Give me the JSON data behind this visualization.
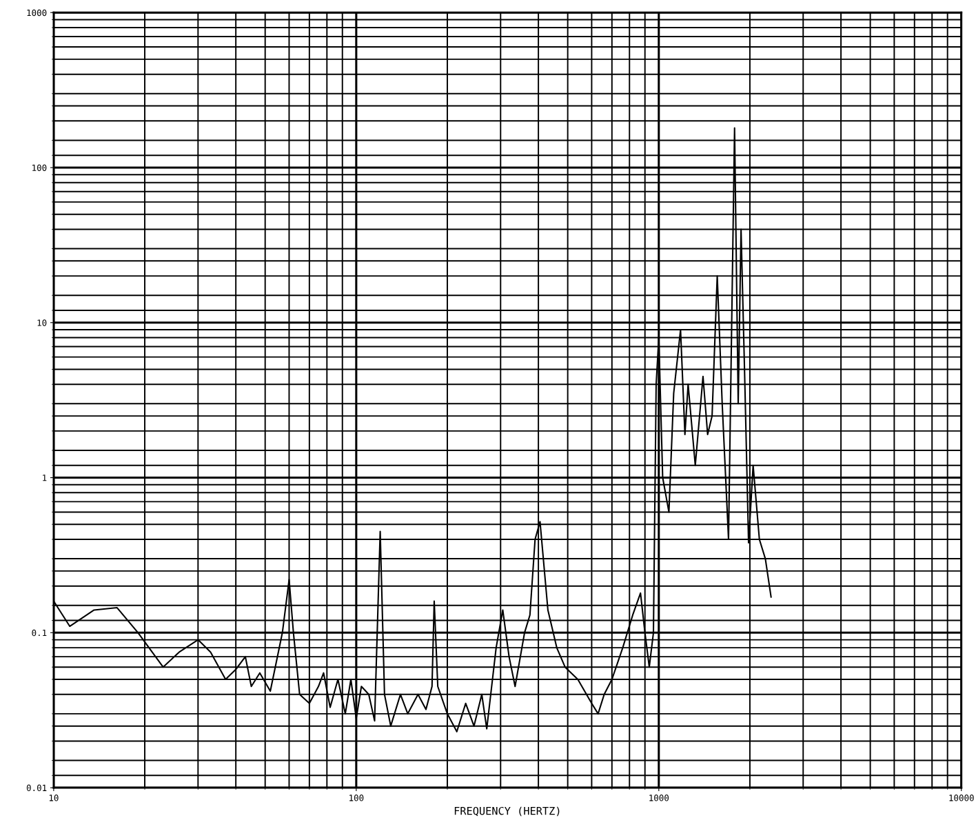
{
  "chart_data": {
    "type": "line",
    "xlabel": "FREQUENCY (HERTZ)",
    "log": "xy",
    "grid": true,
    "marker": "none",
    "line_style": "solid",
    "xlim": [
      10,
      10000
    ],
    "ylim": [
      0.01,
      1000
    ],
    "xticks": [
      10,
      100,
      1000,
      10000
    ],
    "yticks": [
      0.01,
      0.1,
      1,
      10,
      100,
      1000
    ],
    "series": [
      {
        "color": "#000000",
        "x": [
          10,
          11.3,
          13.6,
          16.2,
          19,
          23,
          26,
          30,
          33,
          37,
          40,
          43,
          45,
          48,
          52,
          54,
          57,
          60,
          62,
          65,
          70,
          75,
          78,
          82,
          87,
          92,
          96,
          100,
          104,
          110,
          115,
          120,
          124,
          130,
          140,
          148,
          160,
          170,
          178,
          181,
          186,
          200,
          215,
          230,
          245,
          260,
          270,
          290,
          305,
          320,
          335,
          360,
          375,
          390,
          405,
          430,
          460,
          490,
          540,
          600,
          630,
          660,
          700,
          760,
          820,
          870,
          900,
          930,
          960,
          980,
          1000,
          1030,
          1080,
          1120,
          1180,
          1220,
          1250,
          1320,
          1400,
          1450,
          1500,
          1560,
          1620,
          1700,
          1780,
          1830,
          1870,
          1920,
          1980,
          2050,
          2150,
          2250,
          2350
        ],
        "values": [
          0.16,
          0.11,
          0.14,
          0.145,
          0.1,
          0.06,
          0.075,
          0.09,
          0.075,
          0.05,
          0.058,
          0.07,
          0.045,
          0.055,
          0.042,
          0.06,
          0.1,
          0.22,
          0.1,
          0.04,
          0.035,
          0.045,
          0.055,
          0.033,
          0.05,
          0.03,
          0.05,
          0.028,
          0.045,
          0.04,
          0.027,
          0.45,
          0.04,
          0.025,
          0.04,
          0.03,
          0.04,
          0.032,
          0.045,
          0.16,
          0.045,
          0.03,
          0.023,
          0.035,
          0.025,
          0.04,
          0.024,
          0.08,
          0.14,
          0.07,
          0.045,
          0.1,
          0.13,
          0.4,
          0.52,
          0.14,
          0.08,
          0.06,
          0.05,
          0.035,
          0.03,
          0.04,
          0.05,
          0.08,
          0.13,
          0.18,
          0.1,
          0.06,
          0.1,
          4.0,
          8.0,
          1.0,
          0.6,
          3.5,
          9.0,
          1.9,
          4.0,
          1.2,
          4.5,
          1.9,
          2.5,
          20,
          3.0,
          0.4,
          180,
          3.0,
          40,
          5,
          0.38,
          1.2,
          0.4,
          0.3,
          0.17
        ]
      }
    ]
  }
}
